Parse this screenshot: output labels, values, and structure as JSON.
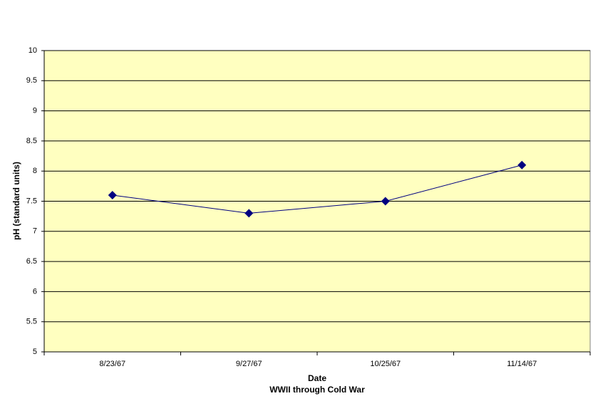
{
  "chart_data": {
    "type": "line",
    "categories": [
      "8/23/67",
      "9/27/67",
      "10/25/67",
      "11/14/67"
    ],
    "series": [
      {
        "name": "pH",
        "color": "#000080",
        "values": [
          7.6,
          7.3,
          7.5,
          8.1
        ]
      }
    ],
    "ylim": [
      5,
      10
    ],
    "yticks": [
      5,
      5.5,
      6,
      6.5,
      7,
      7.5,
      8,
      8.5,
      9,
      9.5,
      10
    ],
    "ylabel": "pH (standard units)",
    "xlabel": "Date",
    "xlabel_note": "WWII through Cold War",
    "grid": true,
    "background": "#ffffc0"
  }
}
